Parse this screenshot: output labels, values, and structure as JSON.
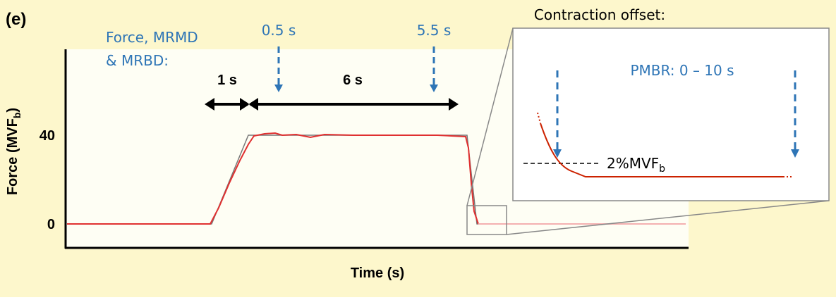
{
  "panel_label": "(e)",
  "force_label": [
    "Force, MRMD",
    "& MRBD:"
  ],
  "markers": [
    "0.5 s",
    "5.5 s"
  ],
  "durations": [
    "1 s",
    "6 s"
  ],
  "y_axis": {
    "title": "Force (MVF",
    "title_subscript": "b",
    "title_suffix": ")",
    "ticks": [
      0,
      40
    ]
  },
  "x_axis": {
    "title": "Time (s)"
  },
  "inset": {
    "title": "Contraction offset:",
    "window": "PMBR:  0 – 10 s",
    "threshold": "2%MVF",
    "threshold_subscript": "b"
  }
}
